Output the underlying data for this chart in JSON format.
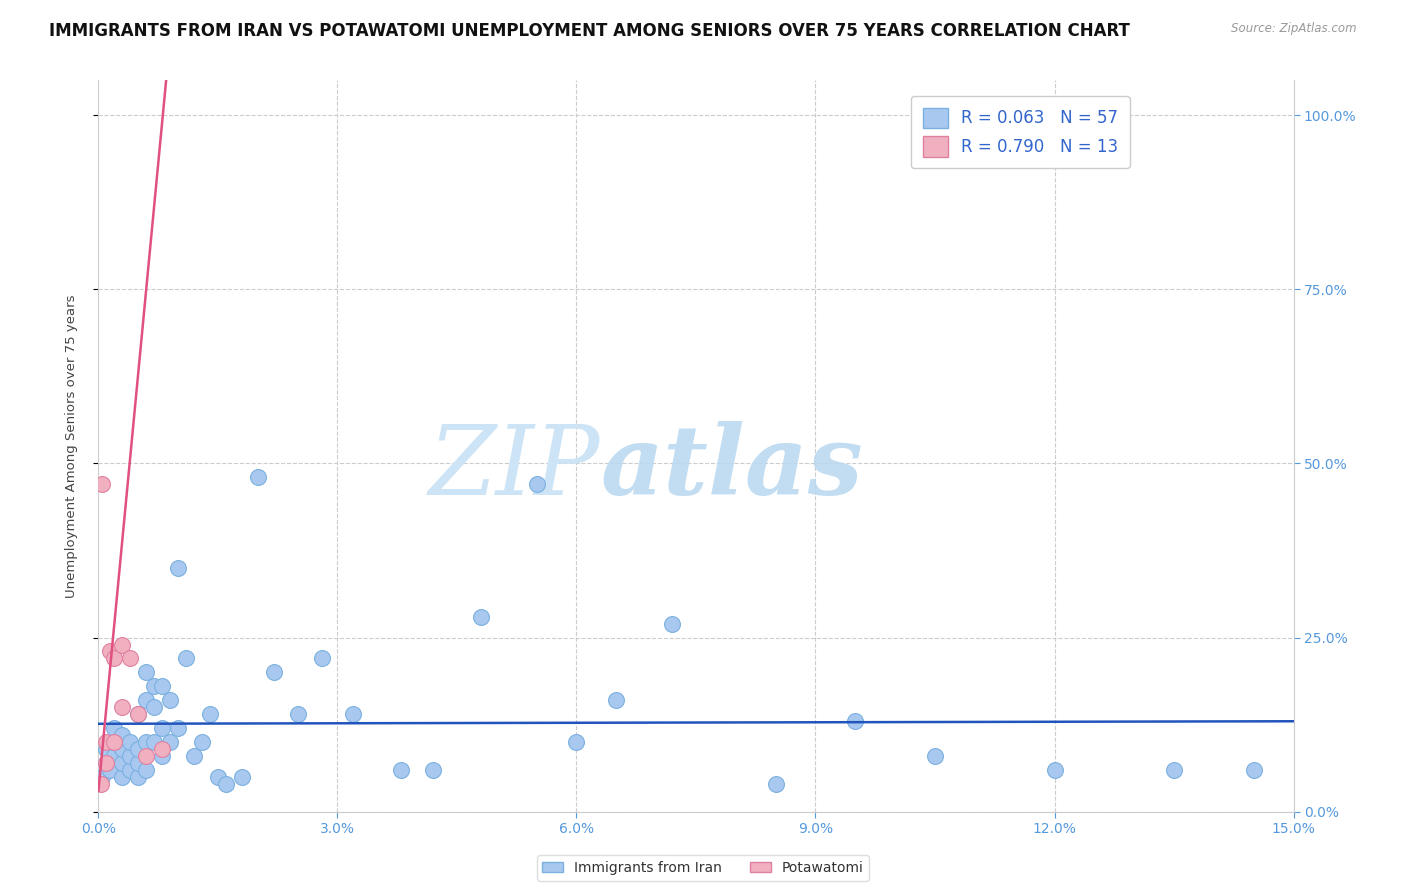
{
  "title": "IMMIGRANTS FROM IRAN VS POTAWATOMI UNEMPLOYMENT AMONG SENIORS OVER 75 YEARS CORRELATION CHART",
  "source": "Source: ZipAtlas.com",
  "ylabel": "Unemployment Among Seniors over 75 years",
  "xlim": [
    0.0,
    0.15
  ],
  "ylim": [
    0.0,
    1.05
  ],
  "xticks": [
    0.0,
    0.03,
    0.06,
    0.09,
    0.12,
    0.15
  ],
  "xticklabels": [
    "0.0%",
    "3.0%",
    "6.0%",
    "9.0%",
    "12.0%",
    "15.0%"
  ],
  "yticks": [
    0.0,
    0.25,
    0.5,
    0.75,
    1.0
  ],
  "yticklabels_left": [
    "",
    "",
    "",
    "",
    ""
  ],
  "yticklabels_right": [
    "0.0%",
    "25.0%",
    "50.0%",
    "75.0%",
    "100.0%"
  ],
  "background_color": "#ffffff",
  "watermark_zip": "ZIP",
  "watermark_atlas": "atlas",
  "watermark_color": "#cce4f5",
  "iran_color": "#a8c8f0",
  "iran_edge_color": "#7ab0e0",
  "potawatomi_color": "#f0b0c0",
  "potawatomi_edge_color": "#e080a0",
  "iran_line_color": "#2255bb",
  "potawatomi_line_color": "#e05080",
  "iran_R": 0.063,
  "iran_N": 57,
  "potawatomi_R": 0.79,
  "potawatomi_N": 13,
  "legend_color": "#3366cc",
  "iran_scatter_x": [
    0.0005,
    0.001,
    0.001,
    0.0015,
    0.002,
    0.002,
    0.002,
    0.003,
    0.003,
    0.003,
    0.003,
    0.004,
    0.004,
    0.004,
    0.005,
    0.005,
    0.005,
    0.005,
    0.006,
    0.006,
    0.006,
    0.006,
    0.007,
    0.007,
    0.007,
    0.008,
    0.008,
    0.008,
    0.009,
    0.009,
    0.01,
    0.01,
    0.011,
    0.012,
    0.013,
    0.014,
    0.015,
    0.016,
    0.018,
    0.02,
    0.022,
    0.025,
    0.028,
    0.032,
    0.038,
    0.042,
    0.048,
    0.055,
    0.06,
    0.065,
    0.072,
    0.085,
    0.095,
    0.105,
    0.12,
    0.135,
    0.145
  ],
  "iran_scatter_y": [
    0.05,
    0.07,
    0.09,
    0.06,
    0.08,
    0.1,
    0.12,
    0.05,
    0.07,
    0.09,
    0.11,
    0.06,
    0.08,
    0.1,
    0.05,
    0.07,
    0.09,
    0.14,
    0.06,
    0.1,
    0.16,
    0.2,
    0.1,
    0.15,
    0.18,
    0.08,
    0.12,
    0.18,
    0.1,
    0.16,
    0.35,
    0.12,
    0.22,
    0.08,
    0.1,
    0.14,
    0.05,
    0.04,
    0.05,
    0.48,
    0.2,
    0.14,
    0.22,
    0.14,
    0.06,
    0.06,
    0.28,
    0.47,
    0.1,
    0.16,
    0.27,
    0.04,
    0.13,
    0.08,
    0.06,
    0.06,
    0.06
  ],
  "potawatomi_scatter_x": [
    0.0003,
    0.0005,
    0.001,
    0.001,
    0.0015,
    0.002,
    0.002,
    0.003,
    0.003,
    0.004,
    0.005,
    0.006,
    0.008
  ],
  "potawatomi_scatter_y": [
    0.04,
    0.47,
    0.07,
    0.1,
    0.23,
    0.22,
    0.1,
    0.24,
    0.15,
    0.22,
    0.14,
    0.08,
    0.09
  ],
  "grid_color": "#cccccc",
  "title_fontsize": 12,
  "axis_fontsize": 10,
  "tick_color_x": "#5599dd",
  "tick_color_right": "#5599dd"
}
